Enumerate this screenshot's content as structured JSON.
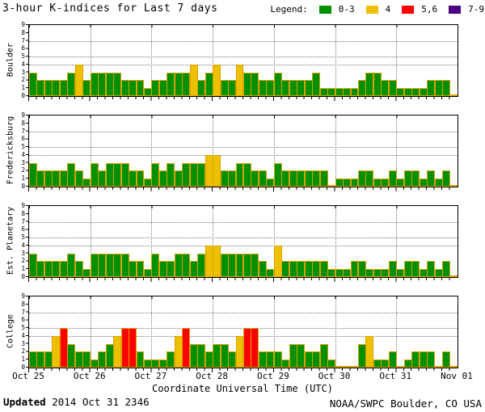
{
  "header": {
    "title": "3-hour K-indices for Last 7 days",
    "legend_label": "Legend:"
  },
  "legend": {
    "items": [
      {
        "label": "0-3",
        "color": "#009000"
      },
      {
        "label": "4",
        "color": "#EDC001"
      },
      {
        "label": "5,6",
        "color": "#FF0000"
      },
      {
        "label": "7-9",
        "color": "#4B0082"
      }
    ]
  },
  "footer": {
    "updated_label": "Updated",
    "updated_value": " 2014 Oct 31 2346",
    "credit": "NOAA/SWPC Boulder, CO USA"
  },
  "chart_data": {
    "type": "bar",
    "title": "3-hour K-indices for Last 7 days",
    "xlabel": "Coordinate Universal Time (UTC)",
    "ylabel": "K-index",
    "ylim": [
      0,
      9
    ],
    "bars_per_day": 8,
    "grid_klevels": [
      4,
      5,
      7
    ],
    "x_categories": [
      "Oct 25",
      "Oct 26",
      "Oct 27",
      "Oct 28",
      "Oct 29",
      "Oct 30",
      "Oct 31",
      "Nov 01"
    ],
    "colors": {
      "green": "#009000",
      "yellow": "#EDC001",
      "red": "#FF0000",
      "purple": "#4B0082",
      "bar_outline": "#D9A300"
    },
    "color_rules": [
      {
        "max": 3,
        "color_key": "green"
      },
      {
        "max": 4,
        "color_key": "yellow"
      },
      {
        "max": 6,
        "color_key": "red"
      },
      {
        "max": 9,
        "color_key": "purple"
      }
    ],
    "panels": [
      {
        "station": "Boulder",
        "values": [
          3,
          2,
          2,
          2,
          2,
          3,
          4,
          2,
          3,
          3,
          3,
          3,
          2,
          2,
          2,
          1,
          2,
          2,
          3,
          3,
          3,
          4,
          2,
          3,
          4,
          2,
          2,
          4,
          3,
          3,
          2,
          2,
          3,
          2,
          2,
          2,
          2,
          3,
          1,
          1,
          1,
          1,
          1,
          2,
          3,
          3,
          2,
          2,
          1,
          1,
          1,
          1,
          2,
          2,
          2,
          0
        ]
      },
      {
        "station": "Fredericksburg",
        "values": [
          3,
          2,
          2,
          2,
          2,
          3,
          2,
          1,
          3,
          2,
          3,
          3,
          3,
          2,
          2,
          1,
          3,
          2,
          3,
          2,
          3,
          3,
          3,
          4,
          4,
          2,
          2,
          3,
          3,
          2,
          2,
          1,
          3,
          2,
          2,
          2,
          2,
          2,
          2,
          0,
          1,
          1,
          1,
          2,
          2,
          1,
          1,
          2,
          1,
          2,
          2,
          1,
          2,
          1,
          2,
          0
        ]
      },
      {
        "station": "Est. Planetary",
        "values": [
          3,
          2,
          2,
          2,
          2,
          3,
          2,
          1,
          3,
          3,
          3,
          3,
          3,
          2,
          2,
          1,
          3,
          2,
          2,
          3,
          3,
          2,
          3,
          4,
          4,
          3,
          3,
          3,
          3,
          3,
          2,
          1,
          4,
          2,
          2,
          2,
          2,
          2,
          2,
          1,
          1,
          1,
          2,
          2,
          1,
          1,
          1,
          2,
          1,
          2,
          2,
          1,
          2,
          1,
          2,
          0
        ]
      },
      {
        "station": "College",
        "values": [
          2,
          2,
          2,
          4,
          5,
          3,
          2,
          2,
          1,
          2,
          3,
          4,
          5,
          5,
          2,
          1,
          1,
          1,
          2,
          4,
          5,
          3,
          3,
          2,
          3,
          3,
          2,
          4,
          5,
          5,
          2,
          2,
          2,
          1,
          3,
          3,
          2,
          2,
          3,
          1,
          0,
          0,
          0,
          3,
          4,
          1,
          1,
          2,
          0,
          1,
          2,
          2,
          2,
          0,
          2,
          0
        ]
      }
    ]
  }
}
